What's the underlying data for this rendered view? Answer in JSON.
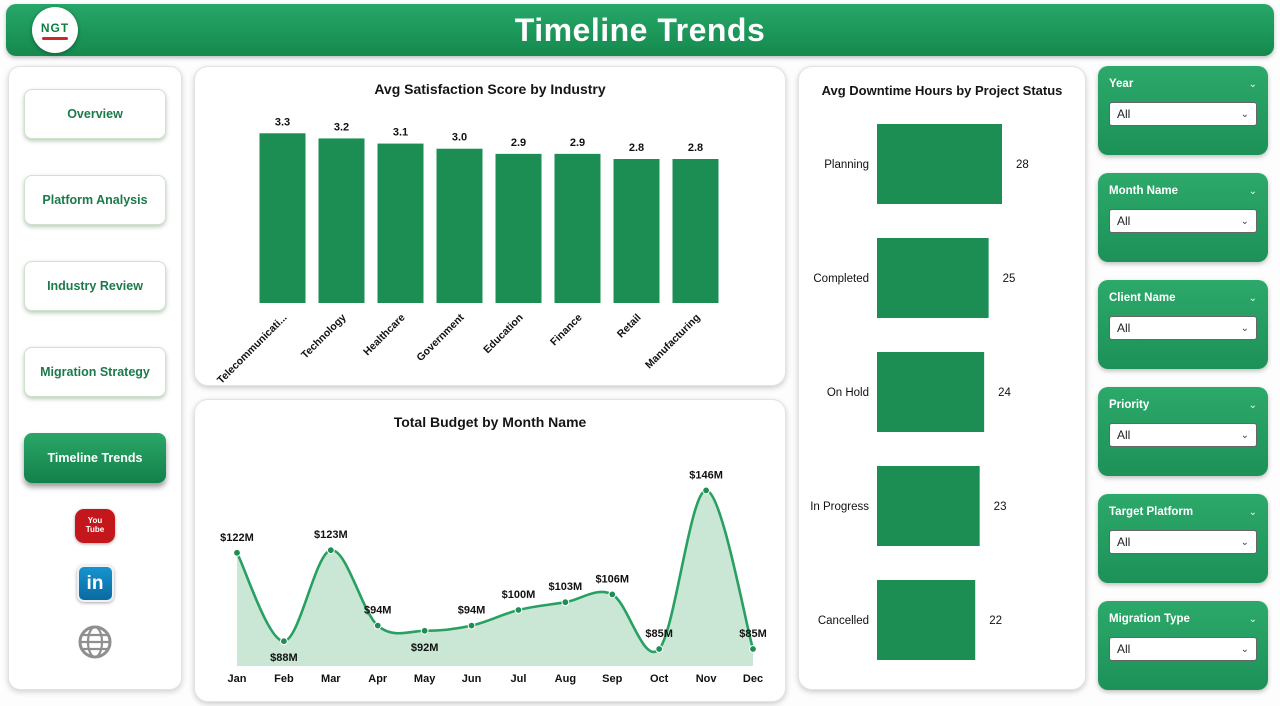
{
  "header": {
    "title": "Timeline Trends",
    "logo_text": "NGT"
  },
  "sidebar": {
    "items": [
      {
        "label": "Overview",
        "active": false
      },
      {
        "label": "Platform Analysis",
        "active": false
      },
      {
        "label": "Industry Review",
        "active": false
      },
      {
        "label": "Migration Strategy",
        "active": false
      },
      {
        "label": "Timeline Trends",
        "active": true
      }
    ],
    "social": [
      {
        "name": "youtube",
        "lines": [
          "You",
          "Tube"
        ]
      },
      {
        "name": "linkedin",
        "text": "in"
      },
      {
        "name": "web"
      }
    ]
  },
  "filters": [
    {
      "label": "Year",
      "value": "All"
    },
    {
      "label": "Month Name",
      "value": "All"
    },
    {
      "label": "Client Name",
      "value": "All"
    },
    {
      "label": "Priority",
      "value": "All"
    },
    {
      "label": "Target Platform",
      "value": "All"
    },
    {
      "label": "Migration Type",
      "value": "All"
    }
  ],
  "colors": {
    "accent": "#1d9158",
    "bar": "#1c8e54",
    "line": "#27a062",
    "fill": "#bfe3cd",
    "marker": "#1f8e55"
  },
  "chart_data": [
    {
      "type": "bar",
      "title": "Avg Satisfaction Score by Industry",
      "categories": [
        "Telecommunicati...",
        "Technology",
        "Healthcare",
        "Government",
        "Education",
        "Finance",
        "Retail",
        "Manufacturing"
      ],
      "values": [
        3.3,
        3.2,
        3.1,
        3.0,
        2.9,
        2.9,
        2.8,
        2.8
      ],
      "value_labels": [
        "3.3",
        "3.2",
        "3.1",
        "3.0",
        "2.9",
        "2.9",
        "2.8",
        "2.8"
      ],
      "xlabel": "",
      "ylabel": "",
      "ylim": [
        0,
        3.5
      ],
      "grid": false,
      "bar_color": "#1c8e54"
    },
    {
      "type": "area",
      "title": "Total Budget by Month Name",
      "categories": [
        "Jan",
        "Feb",
        "Mar",
        "Apr",
        "May",
        "Jun",
        "Jul",
        "Aug",
        "Sep",
        "Oct",
        "Nov",
        "Dec"
      ],
      "values": [
        122,
        88,
        123,
        94,
        92,
        94,
        100,
        103,
        106,
        85,
        146,
        85
      ],
      "value_labels": [
        "$122M",
        "$88M",
        "$123M",
        "$94M",
        "$92M",
        "$94M",
        "$100M",
        "$103M",
        "$106M",
        "$85M",
        "$146M",
        "$85M"
      ],
      "label_below": [
        1,
        4
      ],
      "xlabel": "",
      "ylabel": "",
      "ylim": [
        80,
        150
      ],
      "grid": false,
      "line_color": "#27a062",
      "fill_color": "#bfe3cd",
      "marker_color": "#1f8e55"
    },
    {
      "type": "bar-horizontal",
      "title": "Avg Downtime Hours by Project Status",
      "categories": [
        "Planning",
        "Completed",
        "On Hold",
        "In Progress",
        "Cancelled"
      ],
      "values": [
        28,
        25,
        24,
        23,
        22
      ],
      "value_labels": [
        "28",
        "25",
        "24",
        "23",
        "22"
      ],
      "xlabel": "",
      "ylabel": "",
      "xlim": [
        0,
        28
      ],
      "grid": false,
      "bar_color": "#1c8e54"
    }
  ]
}
